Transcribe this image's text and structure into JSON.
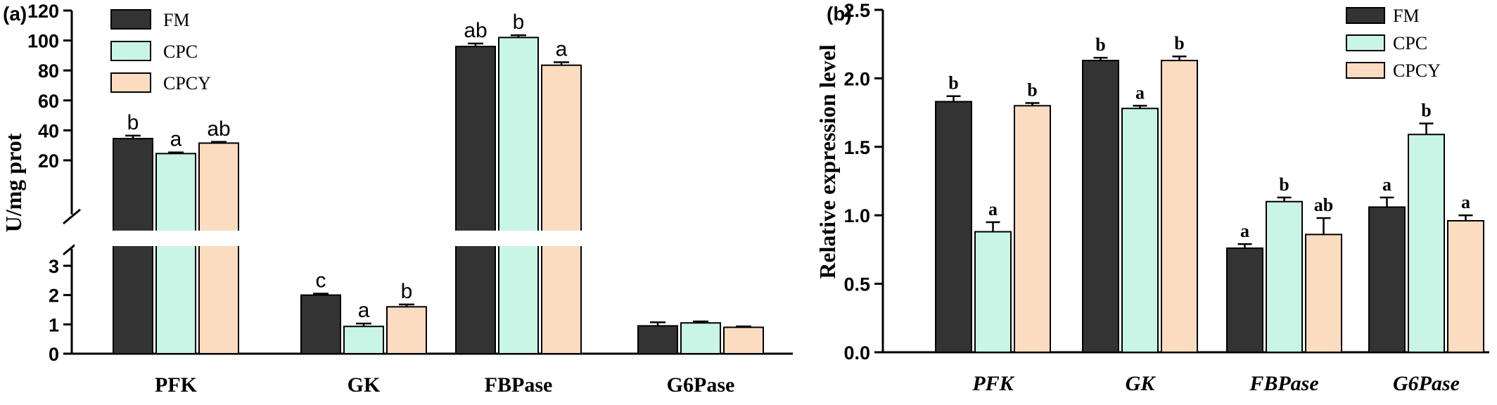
{
  "colors": {
    "FM": "#333333",
    "CPC": "#c9f5e6",
    "CPCY": "#fbdcc0",
    "edge": "#000000"
  },
  "chart_data": [
    {
      "type": "bar",
      "panel": "(a)",
      "ylabel": "U/mg prot",
      "categories": [
        "PFK",
        "GK",
        "FBPase",
        "G6Pase"
      ],
      "series": [
        {
          "name": "FM",
          "values": [
            34.5,
            2.0,
            96,
            0.95
          ],
          "errors": [
            2,
            0.05,
            2,
            0.12
          ],
          "labels": [
            "b",
            "c",
            "ab",
            ""
          ]
        },
        {
          "name": "CPC",
          "values": [
            24.5,
            0.93,
            102,
            1.05
          ],
          "errors": [
            0.8,
            0.1,
            1.5,
            0.05
          ],
          "labels": [
            "a",
            "a",
            "b",
            ""
          ]
        },
        {
          "name": "CPCY",
          "values": [
            31.5,
            1.6,
            83.5,
            0.9
          ],
          "errors": [
            0.8,
            0.08,
            2,
            0.03
          ],
          "labels": [
            "ab",
            "b",
            "a",
            ""
          ]
        }
      ],
      "axis_break": {
        "lower_range": [
          0,
          3
        ],
        "upper_range": [
          20,
          120
        ]
      },
      "lower_ticks": [
        "0",
        "1",
        "2",
        "3"
      ],
      "upper_ticks": [
        "20",
        "40",
        "60",
        "80",
        "100",
        "120"
      ],
      "legend": "top-left"
    },
    {
      "type": "bar",
      "panel": "(b)",
      "ylabel": "Relative expression level",
      "categories": [
        "PFK",
        "GK",
        "FBPase",
        "G6Pase"
      ],
      "series": [
        {
          "name": "FM",
          "values": [
            1.83,
            2.13,
            0.76,
            1.06
          ],
          "errors": [
            0.04,
            0.02,
            0.03,
            0.07
          ],
          "labels": [
            "b",
            "b",
            "a",
            "a"
          ]
        },
        {
          "name": "CPC",
          "values": [
            0.88,
            1.78,
            1.1,
            1.59
          ],
          "errors": [
            0.07,
            0.02,
            0.03,
            0.08
          ],
          "labels": [
            "a",
            "a",
            "b",
            "b"
          ]
        },
        {
          "name": "CPCY",
          "values": [
            1.8,
            2.13,
            0.86,
            0.96
          ],
          "errors": [
            0.02,
            0.03,
            0.12,
            0.04
          ],
          "labels": [
            "b",
            "b",
            "ab",
            "a"
          ]
        }
      ],
      "ylim": [
        0,
        2.5
      ],
      "yticks": [
        "0.0",
        "0.5",
        "1.0",
        "1.5",
        "2.0",
        "2.5"
      ],
      "legend": "top-right"
    }
  ]
}
